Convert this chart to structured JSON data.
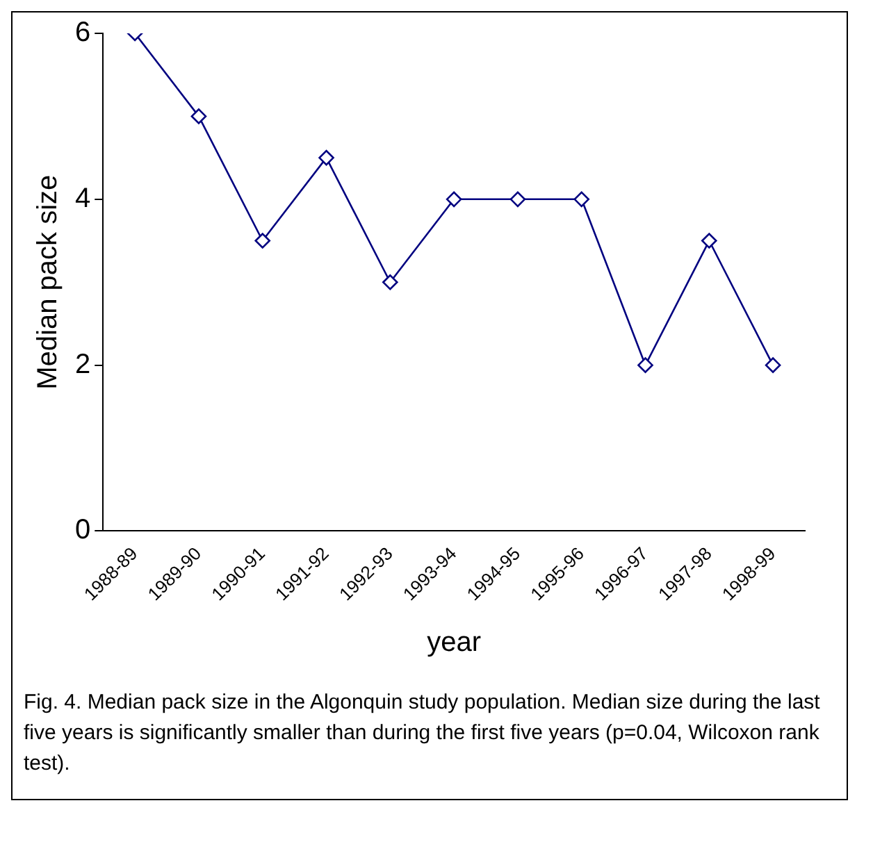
{
  "chart_data": {
    "type": "line",
    "xlabel": "year",
    "ylabel": "Median pack size",
    "categories": [
      "1988-89",
      "1989-90",
      "1990-91",
      "1991-92",
      "1992-93",
      "1993-94",
      "1994-95",
      "1995-96",
      "1996-97",
      "1997-98",
      "1998-99"
    ],
    "series": [
      {
        "color": "#000080",
        "values": [
          6,
          5,
          3.5,
          4.5,
          3,
          4,
          4,
          4,
          2,
          3.5,
          2
        ]
      }
    ],
    "ylim": [
      0,
      6
    ],
    "yticks": [
      0,
      2,
      4,
      6
    ],
    "grid": false,
    "legend": false,
    "marker": "diamond",
    "line_style": "solid",
    "annotations": [
      "Fig. 4. Median pack size in the Algonquin study population. Median size during the last five years is significantly smaller than during the first five years (p=0.04, Wilcoxon rank test)."
    ]
  }
}
